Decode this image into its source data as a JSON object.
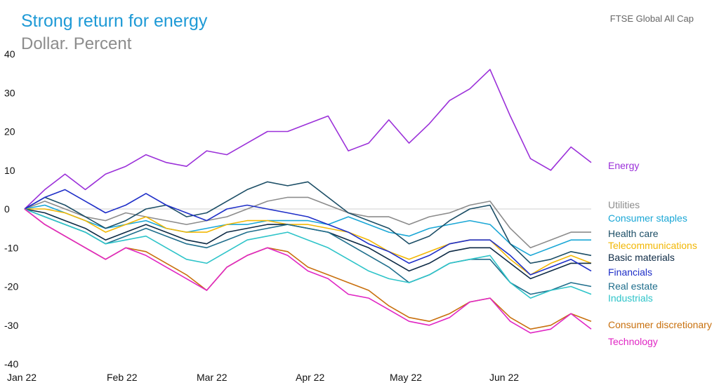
{
  "header": {
    "title": "Strong return for energy",
    "subtitle": "Dollar. Percent",
    "source": "FTSE Global All Cap"
  },
  "chart_data": {
    "type": "line",
    "title": "Strong return for energy",
    "subtitle": "Dollar. Percent",
    "xlabel": "",
    "ylabel": "",
    "ylim": [
      -40,
      40
    ],
    "yticks": [
      -40,
      -30,
      -20,
      -10,
      0,
      10,
      20,
      30,
      40
    ],
    "xticks": [
      "Jan 22",
      "Feb 22",
      "Mar 22",
      "Apr 22",
      "May 22",
      "Jun 22"
    ],
    "xlim": [
      0,
      28
    ],
    "grid": false,
    "zero_line": true,
    "legend": "right, labels at line ends",
    "x": [
      0,
      1,
      2,
      3,
      4,
      5,
      6,
      7,
      8,
      9,
      10,
      11,
      12,
      13,
      14,
      15,
      16,
      17,
      18,
      19,
      20,
      21,
      22,
      23,
      24,
      25,
      26,
      27,
      28
    ],
    "series": [
      {
        "name": "Energy",
        "color": "#9b30d9",
        "values": [
          0,
          5,
          9,
          5,
          9,
          11,
          14,
          12,
          11,
          15,
          14,
          17,
          20,
          20,
          22,
          24,
          15,
          17,
          23,
          17,
          22,
          28,
          31,
          36,
          24,
          13,
          10,
          16,
          12
        ]
      },
      {
        "name": "Utilities",
        "color": "#8c8c8c",
        "values": [
          0,
          2,
          0,
          -2,
          -3,
          -1,
          -2,
          -3,
          -4,
          -3,
          -2,
          0,
          2,
          3,
          3,
          1,
          -1,
          -2,
          -2,
          -4,
          -2,
          -1,
          1,
          2,
          -5,
          -10,
          -8,
          -6,
          -6
        ]
      },
      {
        "name": "Consumer staples",
        "color": "#1aa7d6",
        "values": [
          0,
          1,
          -1,
          -3,
          -5,
          -4,
          -3,
          -5,
          -6,
          -5,
          -4,
          -4,
          -3,
          -3,
          -3,
          -4,
          -2,
          -4,
          -6,
          -7,
          -5,
          -4,
          -3,
          -4,
          -9,
          -12,
          -10,
          -8,
          -8
        ]
      },
      {
        "name": "Health care",
        "color": "#1c4e66",
        "values": [
          0,
          3,
          1,
          -2,
          -5,
          -3,
          0,
          1,
          -2,
          -1,
          2,
          5,
          7,
          6,
          7,
          3,
          -1,
          -3,
          -5,
          -9,
          -7,
          -3,
          0,
          1,
          -9,
          -14,
          -13,
          -11,
          -12
        ]
      },
      {
        "name": "Telecommunications",
        "color": "#f2b705",
        "values": [
          0,
          0,
          -1,
          -3,
          -6,
          -4,
          -2,
          -5,
          -6,
          -6,
          -4,
          -3,
          -3,
          -4,
          -4,
          -5,
          -6,
          -8,
          -11,
          -13,
          -11,
          -9,
          -8,
          -8,
          -13,
          -17,
          -14,
          -12,
          -14
        ]
      },
      {
        "name": "Basic materials",
        "color": "#0d2a45",
        "values": [
          0,
          -1,
          -3,
          -5,
          -8,
          -6,
          -4,
          -6,
          -8,
          -9,
          -6,
          -5,
          -4,
          -4,
          -5,
          -6,
          -8,
          -10,
          -13,
          -16,
          -14,
          -11,
          -10,
          -10,
          -14,
          -18,
          -16,
          -14,
          -14
        ]
      },
      {
        "name": "Financials",
        "color": "#1f2fc8",
        "values": [
          0,
          3,
          5,
          2,
          -1,
          1,
          4,
          1,
          -1,
          -3,
          0,
          1,
          0,
          -1,
          -2,
          -4,
          -6,
          -9,
          -11,
          -14,
          -12,
          -9,
          -8,
          -8,
          -12,
          -17,
          -15,
          -13,
          -16
        ]
      },
      {
        "name": "Real estate",
        "color": "#1f6e8c",
        "values": [
          0,
          -2,
          -4,
          -6,
          -9,
          -7,
          -5,
          -7,
          -9,
          -10,
          -8,
          -6,
          -5,
          -4,
          -5,
          -6,
          -9,
          -12,
          -15,
          -19,
          -17,
          -14,
          -13,
          -13,
          -19,
          -22,
          -21,
          -19,
          -20
        ]
      },
      {
        "name": "Industrials",
        "color": "#2ec4c9",
        "values": [
          0,
          -2,
          -4,
          -6,
          -9,
          -8,
          -7,
          -10,
          -13,
          -14,
          -11,
          -8,
          -7,
          -6,
          -8,
          -10,
          -13,
          -16,
          -18,
          -19,
          -17,
          -14,
          -13,
          -12,
          -19,
          -23,
          -21,
          -20,
          -22
        ]
      },
      {
        "name": "Consumer discretionary",
        "color": "#c8700e",
        "values": [
          0,
          -4,
          -7,
          -10,
          -13,
          -10,
          -11,
          -14,
          -17,
          -21,
          -15,
          -12,
          -10,
          -11,
          -15,
          -17,
          -19,
          -21,
          -25,
          -28,
          -29,
          -27,
          -24,
          -23,
          -28,
          -31,
          -30,
          -27,
          -29
        ]
      },
      {
        "name": "Technology",
        "color": "#e026c4",
        "values": [
          0,
          -4,
          -7,
          -10,
          -13,
          -10,
          -12,
          -15,
          -18,
          -21,
          -15,
          -12,
          -10,
          -12,
          -16,
          -18,
          -22,
          -23,
          -26,
          -29,
          -30,
          -28,
          -24,
          -23,
          -29,
          -32,
          -31,
          -27,
          -31
        ]
      }
    ]
  }
}
